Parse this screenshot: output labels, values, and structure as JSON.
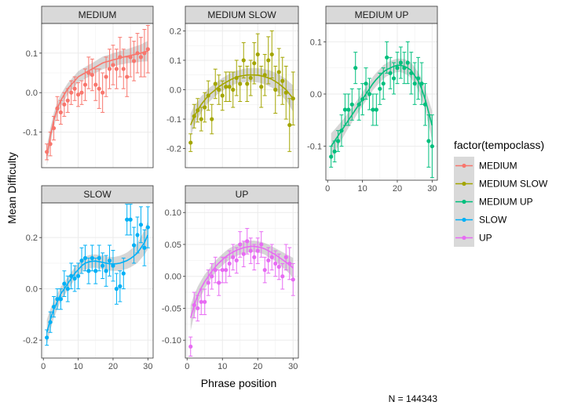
{
  "chart_data": {
    "type": "scatter",
    "facet_layout": "wrap-3-columns",
    "x_label": "Phrase position",
    "y_label": "Mean Difficulty",
    "caption": "N = 144343",
    "legend_title": "factor(tempoclass)",
    "legend_placement": "right",
    "grid": true,
    "smooth": "loess with grey confidence band",
    "error_bars": true,
    "x_ticks": [
      "0",
      "10",
      "20",
      "30"
    ],
    "x_range": [
      -0.5,
      31.5
    ],
    "series": [
      {
        "name": "MEDIUM",
        "color": "#F8766D",
        "y_range": [
          -0.19,
          0.175
        ],
        "y_ticks": [
          -0.1,
          0.0,
          0.1
        ],
        "y_tick_labels": [
          "-0.1",
          "0.0",
          "0.1"
        ],
        "x": [
          1,
          2,
          3,
          4,
          5,
          6,
          7,
          8,
          9,
          10,
          11,
          12,
          13,
          14,
          15,
          16,
          17,
          18,
          19,
          20,
          21,
          22,
          23,
          24,
          25,
          26,
          27,
          28,
          29,
          30
        ],
        "y": [
          -0.15,
          -0.13,
          -0.09,
          -0.04,
          -0.05,
          -0.03,
          -0.02,
          0.0,
          0.01,
          -0.005,
          0.0,
          0.02,
          0.05,
          0.045,
          0.02,
          0.01,
          0.0,
          0.04,
          0.06,
          0.07,
          0.06,
          0.09,
          0.06,
          0.04,
          0.09,
          0.08,
          0.1,
          0.09,
          0.1,
          0.11
        ],
        "err": [
          0.02,
          0.03,
          0.03,
          0.03,
          0.03,
          0.03,
          0.03,
          0.03,
          0.03,
          0.03,
          0.03,
          0.04,
          0.04,
          0.04,
          0.04,
          0.05,
          0.05,
          0.05,
          0.05,
          0.05,
          0.05,
          0.05,
          0.05,
          0.05,
          0.05,
          0.05,
          0.05,
          0.05,
          0.06,
          0.06
        ],
        "fit": [
          -0.16,
          -0.11,
          -0.07,
          -0.04,
          -0.02,
          -0.005,
          0.01,
          0.02,
          0.03,
          0.04,
          0.045,
          0.05,
          0.055,
          0.06,
          0.065,
          0.07,
          0.075,
          0.078,
          0.08,
          0.083,
          0.085,
          0.088,
          0.09,
          0.092,
          0.094,
          0.096,
          0.098,
          0.1,
          0.103,
          0.105
        ],
        "band": [
          0.025,
          0.02,
          0.018,
          0.016,
          0.015,
          0.015,
          0.014,
          0.014,
          0.014,
          0.014,
          0.015,
          0.015,
          0.015,
          0.015,
          0.015,
          0.016,
          0.016,
          0.016,
          0.016,
          0.017,
          0.017,
          0.017,
          0.018,
          0.018,
          0.019,
          0.02,
          0.021,
          0.022,
          0.024,
          0.026
        ]
      },
      {
        "name": "MEDIUM SLOW",
        "color": "#A3A500",
        "y_range": [
          -0.265,
          0.225
        ],
        "y_ticks": [
          -0.2,
          -0.1,
          0.0,
          0.1,
          0.2
        ],
        "y_tick_labels": [
          "-0.2",
          "-0.1",
          "0.0",
          "0.1",
          "0.2"
        ],
        "x": [
          1,
          2,
          3,
          4,
          5,
          6,
          7,
          8,
          9,
          10,
          11,
          12,
          13,
          14,
          15,
          16,
          17,
          18,
          19,
          20,
          21,
          22,
          23,
          24,
          25,
          26,
          27,
          28,
          29,
          30
        ],
        "y": [
          -0.18,
          -0.09,
          -0.07,
          -0.1,
          -0.06,
          -0.02,
          -0.1,
          0.02,
          0.0,
          -0.02,
          0.01,
          0.01,
          0.0,
          0.04,
          0.02,
          0.1,
          0.02,
          0.04,
          0.09,
          0.12,
          0.01,
          0.05,
          0.1,
          0.12,
          0.0,
          0.06,
          0.03,
          -0.01,
          -0.12,
          -0.03
        ],
        "err": [
          0.03,
          0.04,
          0.04,
          0.04,
          0.05,
          0.05,
          0.05,
          0.05,
          0.05,
          0.05,
          0.05,
          0.05,
          0.06,
          0.06,
          0.06,
          0.06,
          0.06,
          0.06,
          0.07,
          0.07,
          0.07,
          0.07,
          0.08,
          0.08,
          0.08,
          0.08,
          0.08,
          0.09,
          0.09,
          0.09
        ],
        "fit": [
          -0.12,
          -0.09,
          -0.07,
          -0.05,
          -0.035,
          -0.02,
          -0.01,
          0.0,
          0.01,
          0.018,
          0.025,
          0.032,
          0.038,
          0.043,
          0.046,
          0.048,
          0.05,
          0.05,
          0.05,
          0.049,
          0.047,
          0.044,
          0.04,
          0.035,
          0.028,
          0.02,
          0.01,
          0.0,
          -0.015,
          -0.03
        ],
        "band": [
          0.04,
          0.035,
          0.03,
          0.028,
          0.025,
          0.024,
          0.023,
          0.022,
          0.022,
          0.022,
          0.022,
          0.022,
          0.022,
          0.022,
          0.022,
          0.023,
          0.023,
          0.023,
          0.024,
          0.024,
          0.025,
          0.026,
          0.027,
          0.028,
          0.03,
          0.032,
          0.034,
          0.037,
          0.04,
          0.045
        ]
      },
      {
        "name": "MEDIUM UP",
        "color": "#00BF7D",
        "y_range": [
          -0.165,
          0.135
        ],
        "y_ticks": [
          -0.1,
          0.0,
          0.1
        ],
        "y_tick_labels": [
          "-0.1",
          "0.0",
          "0.1"
        ],
        "x": [
          1,
          2,
          3,
          4,
          5,
          6,
          7,
          8,
          9,
          10,
          11,
          12,
          13,
          14,
          15,
          16,
          17,
          18,
          19,
          20,
          21,
          22,
          23,
          24,
          25,
          26,
          27,
          28,
          29,
          30
        ],
        "y": [
          -0.12,
          -0.11,
          -0.09,
          -0.07,
          -0.03,
          -0.03,
          -0.02,
          0.05,
          -0.02,
          -0.01,
          0.02,
          0.0,
          -0.03,
          -0.03,
          0.01,
          0.02,
          0.07,
          0.04,
          0.03,
          0.05,
          0.06,
          0.05,
          0.06,
          0.04,
          0.02,
          0.03,
          0.02,
          -0.02,
          -0.09,
          -0.1
        ],
        "err": [
          0.02,
          0.02,
          0.02,
          0.03,
          0.03,
          0.03,
          0.03,
          0.03,
          0.03,
          0.03,
          0.03,
          0.03,
          0.03,
          0.03,
          0.03,
          0.03,
          0.03,
          0.03,
          0.03,
          0.03,
          0.03,
          0.03,
          0.04,
          0.04,
          0.04,
          0.04,
          0.04,
          0.04,
          0.05,
          0.06
        ],
        "fit": [
          -0.1,
          -0.09,
          -0.08,
          -0.07,
          -0.06,
          -0.05,
          -0.04,
          -0.03,
          -0.02,
          -0.01,
          0.0,
          0.01,
          0.02,
          0.028,
          0.035,
          0.042,
          0.047,
          0.05,
          0.053,
          0.055,
          0.055,
          0.053,
          0.05,
          0.045,
          0.035,
          0.025,
          0.01,
          -0.01,
          -0.035,
          -0.06
        ],
        "band": [
          0.025,
          0.022,
          0.02,
          0.018,
          0.016,
          0.015,
          0.014,
          0.014,
          0.013,
          0.013,
          0.013,
          0.013,
          0.013,
          0.013,
          0.013,
          0.013,
          0.013,
          0.013,
          0.013,
          0.013,
          0.013,
          0.014,
          0.014,
          0.015,
          0.016,
          0.017,
          0.019,
          0.021,
          0.024,
          0.028
        ]
      },
      {
        "name": "SLOW",
        "color": "#00B0F6",
        "y_range": [
          -0.27,
          0.335
        ],
        "y_ticks": [
          -0.2,
          0.0,
          0.2
        ],
        "y_tick_labels": [
          "-0.2",
          "0.0",
          "0.2"
        ],
        "x": [
          1,
          2,
          3,
          4,
          5,
          6,
          7,
          8,
          9,
          10,
          11,
          12,
          13,
          14,
          15,
          16,
          17,
          18,
          19,
          20,
          21,
          22,
          23,
          24,
          25,
          26,
          27,
          28,
          29,
          30
        ],
        "y": [
          -0.19,
          -0.13,
          -0.07,
          -0.04,
          -0.04,
          0.02,
          0.0,
          0.05,
          0.04,
          0.05,
          0.11,
          0.12,
          0.07,
          0.12,
          0.07,
          0.12,
          0.09,
          0.07,
          0.11,
          0.09,
          0.0,
          0.01,
          0.06,
          0.27,
          0.27,
          0.17,
          0.21,
          0.25,
          0.16,
          0.24
        ],
        "err": [
          0.03,
          0.04,
          0.04,
          0.04,
          0.04,
          0.05,
          0.05,
          0.05,
          0.05,
          0.05,
          0.05,
          0.05,
          0.05,
          0.05,
          0.05,
          0.05,
          0.05,
          0.06,
          0.06,
          0.06,
          0.06,
          0.06,
          0.06,
          0.06,
          0.06,
          0.07,
          0.07,
          0.07,
          0.07,
          0.08
        ],
        "fit": [
          -0.17,
          -0.12,
          -0.08,
          -0.05,
          -0.02,
          0.0,
          0.02,
          0.04,
          0.06,
          0.075,
          0.09,
          0.1,
          0.105,
          0.108,
          0.108,
          0.106,
          0.103,
          0.1,
          0.098,
          0.097,
          0.098,
          0.1,
          0.105,
          0.11,
          0.118,
          0.128,
          0.14,
          0.16,
          0.18,
          0.21
        ],
        "band": [
          0.05,
          0.04,
          0.035,
          0.03,
          0.028,
          0.026,
          0.025,
          0.024,
          0.024,
          0.024,
          0.025,
          0.025,
          0.026,
          0.026,
          0.026,
          0.026,
          0.026,
          0.026,
          0.027,
          0.027,
          0.028,
          0.029,
          0.03,
          0.032,
          0.034,
          0.036,
          0.039,
          0.043,
          0.048,
          0.055
        ]
      },
      {
        "name": "UP",
        "color": "#E76BF3",
        "y_range": [
          -0.128,
          0.115
        ],
        "y_ticks": [
          -0.1,
          -0.05,
          0.0,
          0.05,
          0.1
        ],
        "y_tick_labels": [
          "-0.10",
          "-0.05",
          "0.00",
          "0.05",
          "0.10"
        ],
        "x": [
          1,
          2,
          3,
          4,
          5,
          6,
          7,
          8,
          9,
          10,
          11,
          12,
          13,
          14,
          15,
          16,
          17,
          18,
          19,
          20,
          21,
          22,
          23,
          24,
          25,
          26,
          27,
          28,
          29,
          30
        ],
        "y": [
          -0.11,
          -0.045,
          -0.05,
          -0.04,
          -0.04,
          -0.01,
          0.0,
          0.01,
          -0.01,
          0.01,
          0.01,
          0.02,
          0.03,
          0.025,
          0.05,
          0.035,
          0.055,
          0.04,
          0.03,
          0.04,
          0.05,
          0.01,
          0.025,
          0.03,
          0.02,
          0.015,
          0.0,
          0.03,
          0.02,
          -0.005
        ],
        "err": [
          0.015,
          0.02,
          0.02,
          0.02,
          0.02,
          0.02,
          0.02,
          0.02,
          0.02,
          0.02,
          0.02,
          0.02,
          0.02,
          0.02,
          0.02,
          0.02,
          0.02,
          0.02,
          0.02,
          0.02,
          0.02,
          0.02,
          0.02,
          0.02,
          0.02,
          0.02,
          0.02,
          0.02,
          0.025,
          0.025
        ],
        "fit": [
          -0.065,
          -0.045,
          -0.03,
          -0.018,
          -0.008,
          0.0,
          0.008,
          0.015,
          0.021,
          0.026,
          0.031,
          0.035,
          0.038,
          0.041,
          0.043,
          0.045,
          0.046,
          0.047,
          0.047,
          0.046,
          0.045,
          0.043,
          0.04,
          0.037,
          0.034,
          0.03,
          0.026,
          0.022,
          0.018,
          0.013
        ],
        "band": [
          0.02,
          0.016,
          0.014,
          0.012,
          0.011,
          0.01,
          0.01,
          0.009,
          0.009,
          0.009,
          0.009,
          0.009,
          0.009,
          0.009,
          0.009,
          0.009,
          0.009,
          0.009,
          0.009,
          0.009,
          0.009,
          0.009,
          0.01,
          0.01,
          0.01,
          0.011,
          0.012,
          0.013,
          0.014,
          0.016
        ]
      }
    ]
  }
}
